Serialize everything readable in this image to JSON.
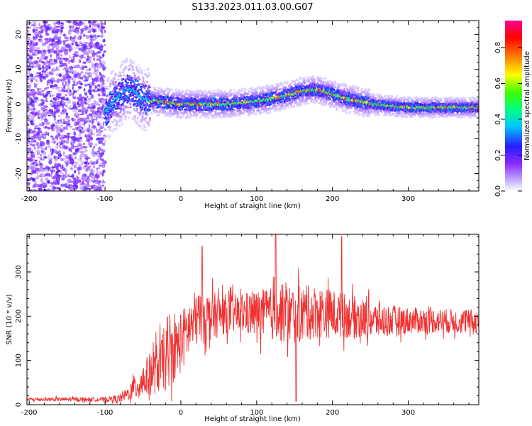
{
  "title": "S133.2023.011.03.00.G07",
  "chart_data": [
    {
      "type": "heatmap",
      "xlabel": "Height of straight line (km)",
      "ylabel": "Frequency (Hz)",
      "xlim": [
        -203,
        393
      ],
      "ylim": [
        -25,
        24
      ],
      "xticks": [
        -200,
        -100,
        0,
        100,
        200,
        300
      ],
      "yticks": [
        -20,
        -10,
        0,
        10,
        20
      ],
      "colorbar": {
        "label": "Normalized spectral amplitude",
        "range": [
          0,
          0.95
        ],
        "ticks": [
          "0.0",
          "0.2",
          "0.4",
          "0.6",
          "0.8"
        ],
        "tick_values": [
          0.0,
          0.2,
          0.4,
          0.6,
          0.8
        ]
      },
      "noise_region": {
        "x": [
          -203,
          -100
        ]
      },
      "ridge": {
        "x": [
          -100,
          -90,
          -80,
          -70,
          -60,
          -50,
          -40,
          -30,
          -20,
          -10,
          0,
          20,
          40,
          60,
          80,
          100,
          120,
          140,
          160,
          180,
          200,
          220,
          240,
          260,
          280,
          300,
          320,
          340,
          360,
          380,
          393
        ],
        "frequency": [
          -2.5,
          0.5,
          2.5,
          4.5,
          3.5,
          1.5,
          1.0,
          0.8,
          0.5,
          0.2,
          0.0,
          0.0,
          0.0,
          0.0,
          0.3,
          0.8,
          1.5,
          2.5,
          3.8,
          4.2,
          2.8,
          1.5,
          0.5,
          -0.2,
          -0.6,
          -1.0,
          -1.0,
          -1.0,
          -1.0,
          -1.0,
          -1.0
        ]
      },
      "grid": false
    },
    {
      "type": "line",
      "xlabel": "Height of straight line (km)",
      "ylabel": "SNR (10 * v/v)",
      "xlim": [
        -203,
        393
      ],
      "ylim": [
        0,
        385
      ],
      "xticks": [
        -200,
        -100,
        0,
        100,
        200,
        300
      ],
      "yticks": [
        0,
        100,
        200,
        300
      ],
      "color": "#f03232",
      "envelope": {
        "x": [
          -203,
          -100,
          -80,
          -70,
          -60,
          -40,
          -20,
          0,
          20,
          40,
          60,
          80,
          100,
          120,
          140,
          160,
          180,
          200,
          220,
          240,
          260,
          280,
          300,
          320,
          340,
          360,
          380,
          393
        ],
        "mean": [
          12,
          12,
          14,
          25,
          40,
          70,
          100,
          140,
          195,
          200,
          205,
          205,
          205,
          205,
          205,
          205,
          210,
          205,
          200,
          195,
          190,
          190,
          190,
          190,
          190,
          188,
          188,
          188
        ],
        "spread": [
          4,
          5,
          10,
          15,
          30,
          50,
          70,
          70,
          65,
          55,
          45,
          45,
          55,
          60,
          70,
          65,
          60,
          55,
          50,
          45,
          40,
          35,
          30,
          30,
          28,
          28,
          28,
          28
        ]
      },
      "peaks": [
        {
          "x": 125,
          "y": 385
        },
        {
          "x": 152,
          "y": 8
        },
        {
          "x": 212,
          "y": 380
        },
        {
          "x": 28,
          "y": 358
        }
      ],
      "grid": false
    }
  ]
}
